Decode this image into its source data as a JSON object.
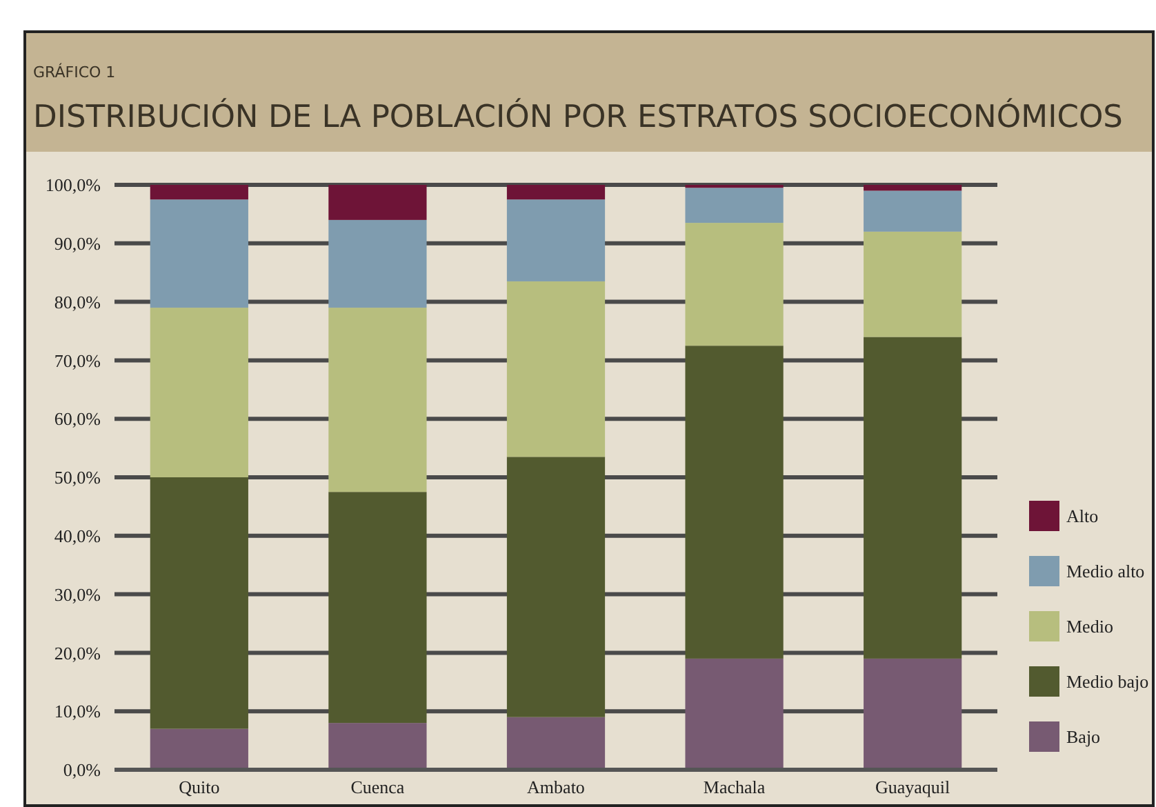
{
  "chart_data": {
    "type": "bar",
    "subtitle": "GRÁFICO 1",
    "title": "DISTRIBUCIÓN DE LA POBLACIÓN POR ESTRATOS SOCIOECONÓMICOS",
    "categories": [
      "Quito",
      "Cuenca",
      "Ambato",
      "Machala",
      "Guayaquil"
    ],
    "stacked": true,
    "series": [
      {
        "name": "Bajo",
        "color": "#775a72",
        "values": [
          7,
          8,
          9,
          19,
          19
        ]
      },
      {
        "name": "Medio bajo",
        "color": "#525a2f",
        "values": [
          43,
          39.5,
          44.5,
          53.5,
          55
        ]
      },
      {
        "name": "Medio",
        "color": "#b7be7e",
        "values": [
          29,
          31.5,
          30,
          21,
          18
        ]
      },
      {
        "name": "Medio alto",
        "color": "#7f9caf",
        "values": [
          18.5,
          15,
          14,
          6,
          7
        ]
      },
      {
        "name": "Alto",
        "color": "#6e1437",
        "values": [
          2.5,
          6,
          2.5,
          0.5,
          1
        ]
      }
    ],
    "ylim": [
      0,
      100
    ],
    "yticks": [
      {
        "value": 0,
        "label": "0,0%"
      },
      {
        "value": 10,
        "label": "10,0%"
      },
      {
        "value": 20,
        "label": "20,0%"
      },
      {
        "value": 30,
        "label": "30,0%"
      },
      {
        "value": 40,
        "label": "40,0%"
      },
      {
        "value": 50,
        "label": "50,0%"
      },
      {
        "value": 60,
        "label": "60,0%"
      },
      {
        "value": 70,
        "label": "70,0%"
      },
      {
        "value": 80,
        "label": "80,0%"
      },
      {
        "value": 90,
        "label": "90,0%"
      },
      {
        "value": 100,
        "label": "100,0%"
      }
    ],
    "grid": "y",
    "legend": "right"
  }
}
